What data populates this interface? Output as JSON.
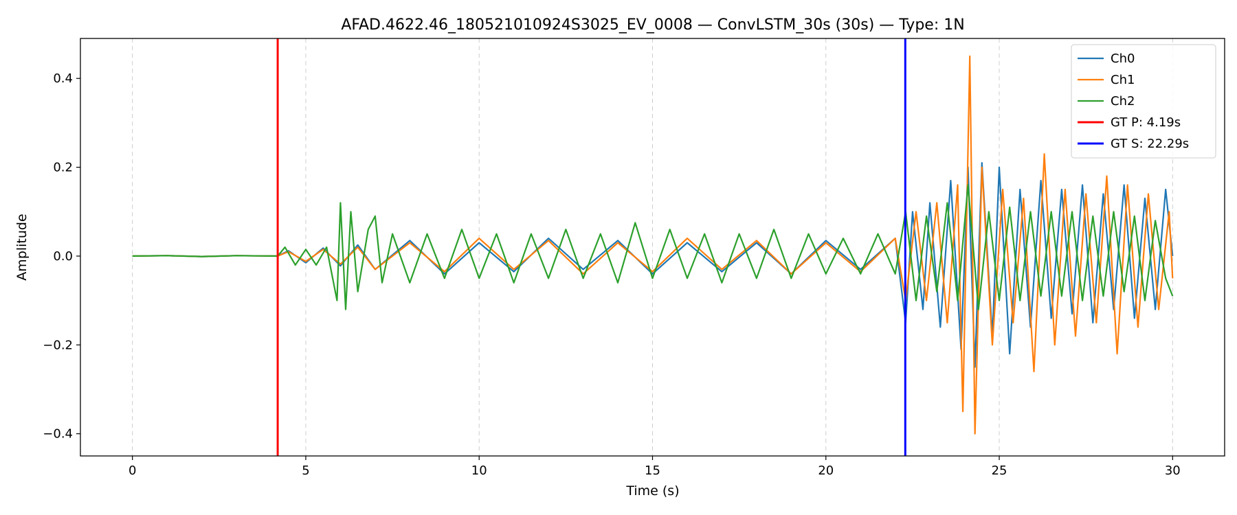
{
  "chart_data": {
    "type": "line",
    "title": "AFAD.4622.46_180521010924S3025_EV_0008 — ConvLSTM_30s (30s) — Type: 1N",
    "xlabel": "Time (s)",
    "ylabel": "Amplitude",
    "xlim": [
      -1.5,
      31.5
    ],
    "ylim": [
      -0.45,
      0.49
    ],
    "xticks": [
      0,
      5,
      10,
      15,
      20,
      25,
      30
    ],
    "xtick_labels": [
      "0",
      "5",
      "10",
      "15",
      "20",
      "25",
      "30"
    ],
    "yticks": [
      -0.4,
      -0.2,
      0.0,
      0.2,
      0.4
    ],
    "ytick_labels": [
      "−0.4",
      "−0.2",
      "0.0",
      "0.2",
      "0.4"
    ],
    "grid": "x-dashed",
    "legend_position": "top-right",
    "series": [
      {
        "name": "Ch0",
        "color": "#1f77b4",
        "x": [
          0,
          1,
          2,
          3,
          4.19,
          4.5,
          5,
          5.5,
          6,
          6.5,
          7,
          8,
          9,
          10,
          11,
          12,
          13,
          14,
          15,
          16,
          17,
          18,
          19,
          20,
          21,
          22,
          22.3,
          22.5,
          22.8,
          23.0,
          23.3,
          23.6,
          23.9,
          24.1,
          24.3,
          24.5,
          24.8,
          25.0,
          25.3,
          25.6,
          25.9,
          26.2,
          26.5,
          26.8,
          27.1,
          27.4,
          27.7,
          28.0,
          28.3,
          28.6,
          28.9,
          29.2,
          29.5,
          29.8,
          30.0
        ],
        "y": [
          0,
          0.001,
          -0.001,
          0.001,
          0,
          0.012,
          -0.015,
          0.018,
          -0.022,
          0.025,
          -0.03,
          0.035,
          -0.04,
          0.03,
          -0.035,
          0.04,
          -0.03,
          0.035,
          -0.04,
          0.03,
          -0.035,
          0.03,
          -0.04,
          0.035,
          -0.03,
          0.04,
          -0.15,
          0.1,
          -0.12,
          0.12,
          -0.16,
          0.17,
          -0.21,
          0.2,
          -0.25,
          0.21,
          -0.18,
          0.2,
          -0.22,
          0.15,
          -0.16,
          0.17,
          -0.14,
          0.15,
          -0.13,
          0.16,
          -0.15,
          0.14,
          -0.12,
          0.16,
          -0.14,
          0.13,
          -0.12,
          0.15,
          0.0
        ]
      },
      {
        "name": "Ch1",
        "color": "#ff7f0e",
        "x": [
          0,
          1,
          2,
          3,
          4.19,
          4.5,
          5,
          5.5,
          6,
          6.5,
          7,
          8,
          9,
          10,
          11,
          12,
          13,
          14,
          15,
          16,
          17,
          18,
          19,
          20,
          21,
          22,
          22.3,
          22.6,
          22.9,
          23.2,
          23.5,
          23.8,
          23.95,
          24.15,
          24.3,
          24.5,
          24.8,
          25.1,
          25.4,
          25.7,
          26.0,
          26.3,
          26.6,
          26.9,
          27.2,
          27.5,
          27.8,
          28.1,
          28.4,
          28.7,
          29.0,
          29.3,
          29.6,
          29.9,
          30.0
        ],
        "y": [
          0,
          0.001,
          -0.001,
          0.001,
          0,
          0.01,
          -0.012,
          0.015,
          -0.018,
          0.02,
          -0.03,
          0.03,
          -0.035,
          0.04,
          -0.03,
          0.035,
          -0.04,
          0.03,
          -0.035,
          0.04,
          -0.03,
          0.035,
          -0.04,
          0.03,
          -0.035,
          0.04,
          -0.1,
          0.1,
          -0.1,
          0.12,
          -0.15,
          0.16,
          -0.35,
          0.45,
          -0.4,
          0.2,
          -0.2,
          0.15,
          -0.15,
          0.13,
          -0.26,
          0.23,
          -0.2,
          0.15,
          -0.18,
          0.14,
          -0.15,
          0.18,
          -0.22,
          0.16,
          -0.16,
          0.14,
          -0.12,
          0.1,
          -0.05
        ]
      },
      {
        "name": "Ch2",
        "color": "#2ca02c",
        "x": [
          0,
          1,
          2,
          3,
          4.19,
          4.4,
          4.7,
          5.0,
          5.3,
          5.6,
          5.9,
          6.0,
          6.15,
          6.3,
          6.5,
          6.8,
          7.0,
          7.2,
          7.5,
          8,
          8.5,
          9,
          9.5,
          10,
          10.5,
          11,
          11.5,
          12,
          12.5,
          13,
          13.5,
          14,
          14.5,
          15,
          15.5,
          16,
          16.5,
          17,
          17.5,
          18,
          18.5,
          19,
          19.5,
          20,
          20.5,
          21,
          21.5,
          22,
          22.3,
          22.6,
          22.9,
          23.2,
          23.5,
          23.8,
          24.1,
          24.4,
          24.7,
          25.0,
          25.3,
          25.6,
          25.9,
          26.2,
          26.5,
          26.8,
          27.1,
          27.4,
          27.7,
          28.0,
          28.3,
          28.6,
          28.9,
          29.2,
          29.5,
          29.8,
          30.0
        ],
        "y": [
          0,
          0.001,
          -0.001,
          0.001,
          0,
          0.02,
          -0.02,
          0.015,
          -0.02,
          0.02,
          -0.1,
          0.12,
          -0.12,
          0.1,
          -0.08,
          0.06,
          0.09,
          -0.06,
          0.05,
          -0.06,
          0.05,
          -0.05,
          0.06,
          -0.05,
          0.05,
          -0.06,
          0.05,
          -0.05,
          0.06,
          -0.05,
          0.05,
          -0.06,
          0.075,
          -0.05,
          0.06,
          -0.05,
          0.05,
          -0.06,
          0.05,
          -0.05,
          0.06,
          -0.05,
          0.05,
          -0.04,
          0.04,
          -0.04,
          0.05,
          -0.04,
          0.1,
          -0.1,
          0.09,
          -0.08,
          0.12,
          -0.1,
          0.16,
          -0.12,
          0.1,
          -0.1,
          0.11,
          -0.1,
          0.1,
          -0.09,
          0.1,
          -0.09,
          0.1,
          -0.1,
          0.09,
          -0.09,
          0.1,
          -0.08,
          0.09,
          -0.1,
          0.08,
          -0.05,
          -0.09
        ]
      }
    ],
    "vlines": [
      {
        "name": "GT P: 4.19s",
        "x": 4.19,
        "color": "#ff0000"
      },
      {
        "name": "GT S: 22.29s",
        "x": 22.29,
        "color": "#0000ff"
      }
    ]
  }
}
